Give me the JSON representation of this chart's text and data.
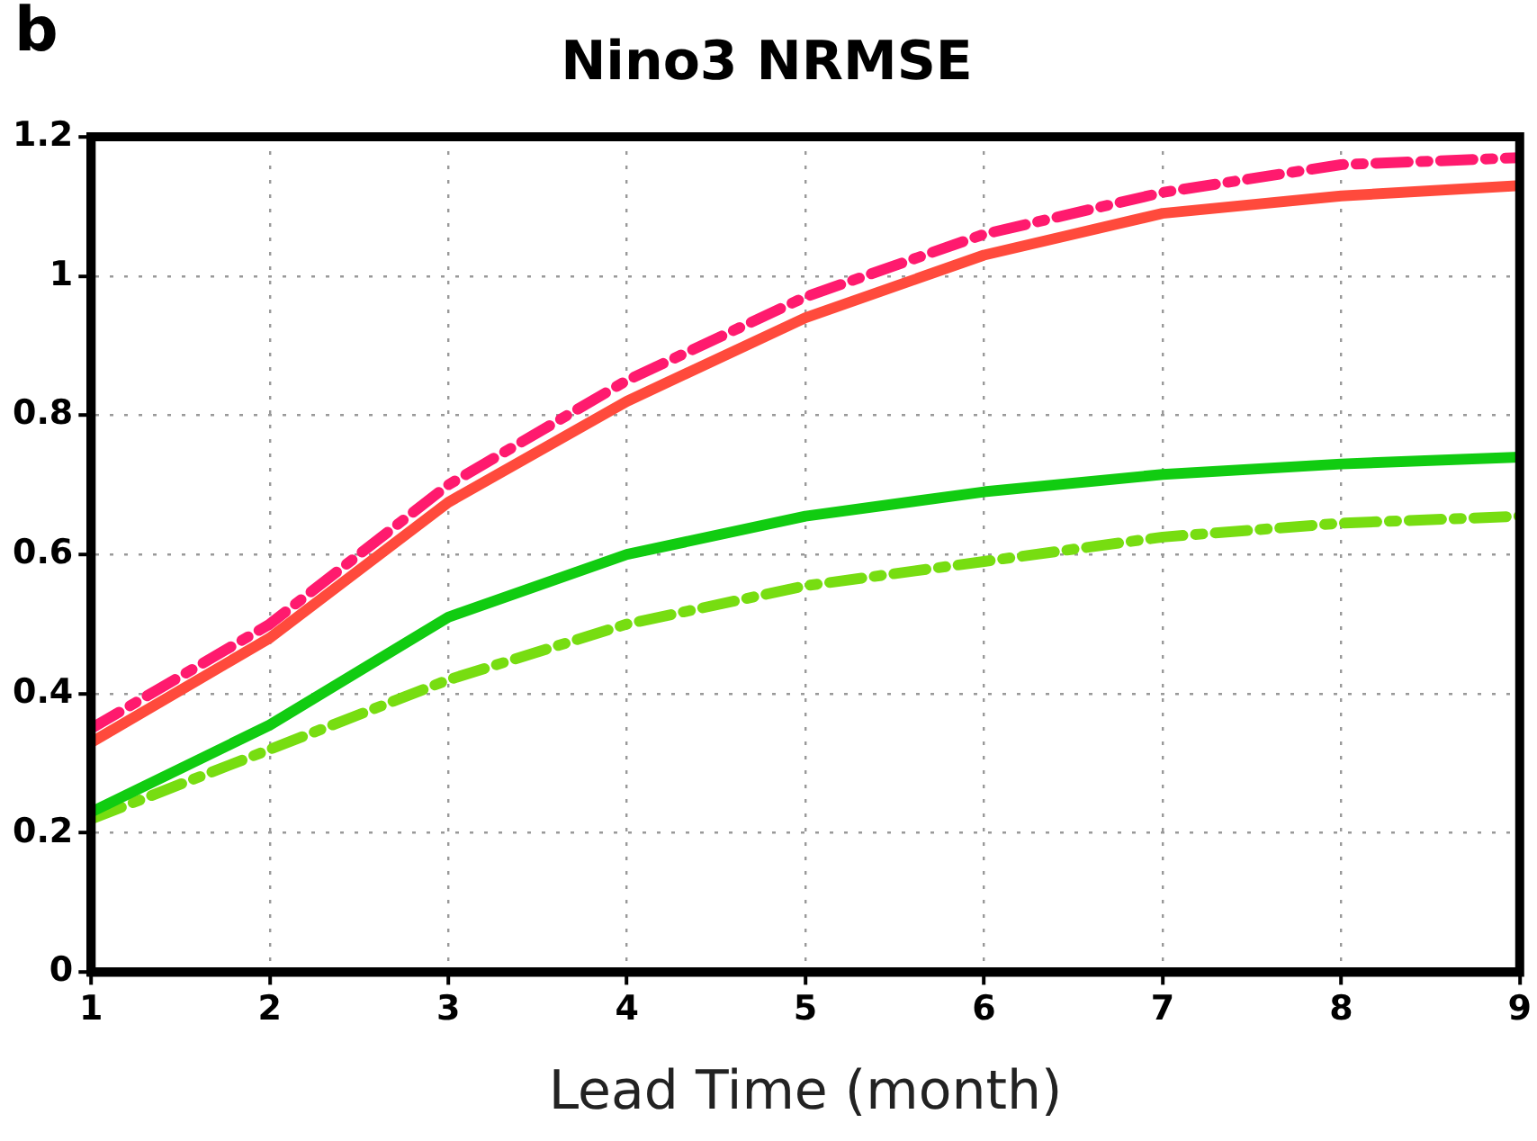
{
  "chart_data": {
    "type": "line",
    "title": "Nino3 NRMSE",
    "xlabel": "Lead Time (month)",
    "annotations": [
      "b"
    ],
    "x": [
      1,
      2,
      3,
      4,
      5,
      6,
      7,
      8,
      9
    ],
    "xlim": [
      1,
      9
    ],
    "xticks": [
      1,
      2,
      3,
      4,
      5,
      6,
      7,
      8,
      9
    ],
    "ylim": [
      0,
      1.2
    ],
    "yticks": [
      0,
      0.2,
      0.4,
      0.6,
      0.8,
      1,
      1.2
    ],
    "grid": true,
    "legend": false,
    "marker": "none",
    "series": [
      {
        "color": "#ff1a6e",
        "line_style": "dashdot",
        "values": [
          0.35,
          0.5,
          0.7,
          0.85,
          0.97,
          1.06,
          1.12,
          1.16,
          1.17
        ]
      },
      {
        "color": "#ff4a3c",
        "line_style": "solid",
        "values": [
          0.33,
          0.48,
          0.675,
          0.82,
          0.94,
          1.03,
          1.09,
          1.115,
          1.13
        ]
      },
      {
        "color": "#11cc11",
        "line_style": "solid",
        "values": [
          0.23,
          0.355,
          0.51,
          0.6,
          0.655,
          0.69,
          0.715,
          0.73,
          0.74
        ]
      },
      {
        "color": "#77dd11",
        "line_style": "dashdot",
        "values": [
          0.22,
          0.32,
          0.42,
          0.5,
          0.555,
          0.59,
          0.625,
          0.645,
          0.655
        ]
      }
    ]
  }
}
